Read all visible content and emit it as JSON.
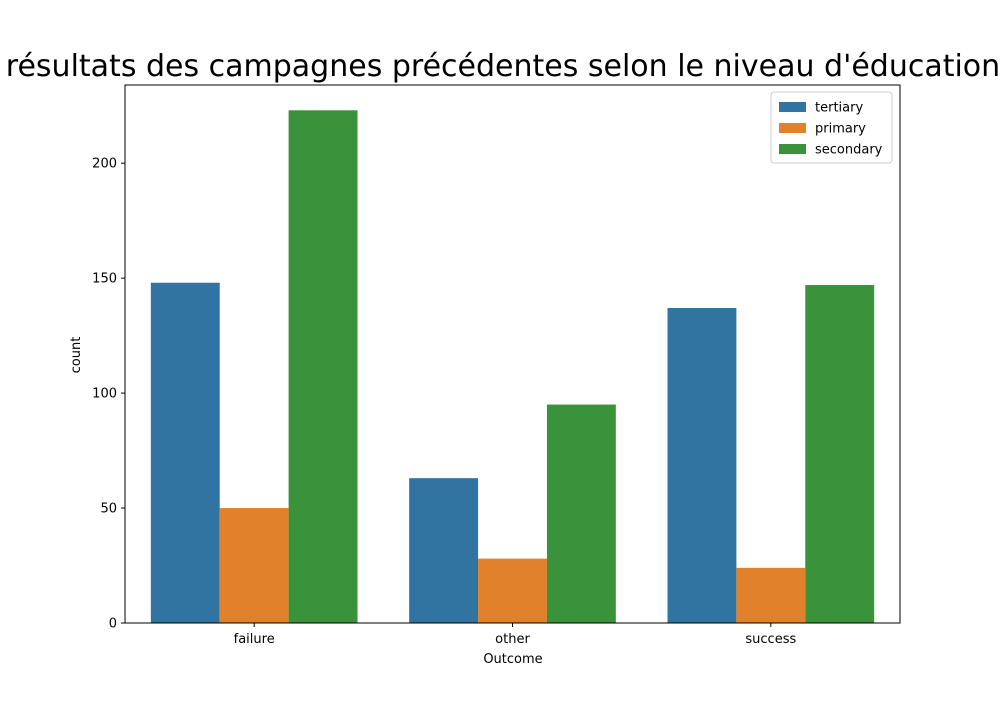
{
  "chart_data": {
    "type": "bar",
    "title": "résultats des campagnes précédentes selon le niveau d'éducation",
    "xlabel": "Outcome",
    "ylabel": "count",
    "categories": [
      "failure",
      "other",
      "success"
    ],
    "series": [
      {
        "name": "tertiary",
        "color": "#3274a1",
        "values": [
          148,
          63,
          137
        ]
      },
      {
        "name": "primary",
        "color": "#e1812c",
        "values": [
          50,
          28,
          24
        ]
      },
      {
        "name": "secondary",
        "color": "#3a923a",
        "values": [
          223,
          95,
          147
        ]
      }
    ],
    "ylim": [
      0,
      234
    ],
    "yticks": [
      0,
      50,
      100,
      150,
      200
    ],
    "grid": false,
    "legend_position": "top-right"
  }
}
